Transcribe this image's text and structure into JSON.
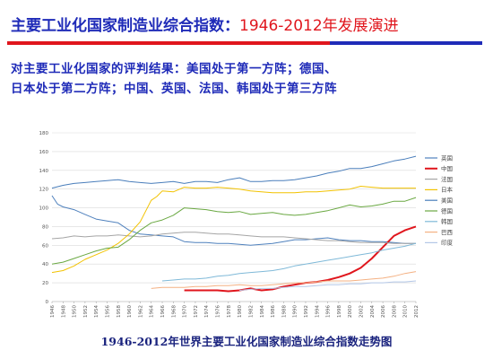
{
  "slide": {
    "title_main": "主要工业化国家制造业综合指数",
    "title_colon": "：",
    "title_years": "1946-2012年发展演进",
    "summary_line1": "对主要工业化国家的评判结果：美国处于第一方阵；德国、",
    "summary_line2": "日本处于第二方阵；中国、英国、法国、韩国处于第三方阵",
    "caption": "1946-2012年世界主要工业化国家制造业综合指数走势图"
  },
  "chart_data": {
    "type": "line",
    "title": "",
    "xlabel": "",
    "ylabel": "",
    "ylim": [
      0,
      180
    ],
    "yticks": [
      "0",
      "20",
      "40",
      "60",
      "80",
      "100",
      "120",
      "140",
      "160",
      "180"
    ],
    "xlim": [
      1946,
      2012
    ],
    "xticks": [
      "1946",
      "1948",
      "1950",
      "1952",
      "1954",
      "1956",
      "1958",
      "1960",
      "1962",
      "1964",
      "1966",
      "1968",
      "1970",
      "1972",
      "1974",
      "1976",
      "1978",
      "1980",
      "1982",
      "1984",
      "1986",
      "1988",
      "1990",
      "1992",
      "1994",
      "1996",
      "1998",
      "2000",
      "2002",
      "2004",
      "2006",
      "2008",
      "2010",
      "2012"
    ],
    "grid": "horizontal",
    "legend_position": "right",
    "series": [
      {
        "name": "英国",
        "color": "#4f81bd",
        "width": 1,
        "x": [
          1946,
          1947,
          1948,
          1950,
          1952,
          1954,
          1956,
          1958,
          1960,
          1962,
          1964,
          1966,
          1968,
          1970,
          1972,
          1974,
          1976,
          1978,
          1980,
          1982,
          1984,
          1986,
          1988,
          1990,
          1992,
          1994,
          1996,
          1998,
          2000,
          2002,
          2004,
          2006,
          2008,
          2010,
          2012
        ],
        "y": [
          113,
          104,
          101,
          98,
          93,
          88,
          86,
          84,
          76,
          72,
          71,
          70,
          69,
          64,
          63,
          63,
          62,
          62,
          61,
          60,
          61,
          62,
          64,
          66,
          66,
          67,
          68,
          66,
          65,
          65,
          64,
          64,
          63,
          62,
          62
        ]
      },
      {
        "name": "中国",
        "color": "#e0161d",
        "width": 2,
        "x": [
          1970,
          1972,
          1974,
          1976,
          1978,
          1980,
          1982,
          1984,
          1986,
          1988,
          1990,
          1992,
          1994,
          1996,
          1998,
          2000,
          2002,
          2004,
          2006,
          2008,
          2010,
          2012
        ],
        "y": [
          12,
          12,
          12,
          12,
          11,
          12,
          14,
          12,
          13,
          16,
          18,
          20,
          21,
          23,
          26,
          30,
          36,
          46,
          58,
          70,
          76,
          80
        ]
      },
      {
        "name": "法国",
        "color": "#a5a5a5",
        "width": 1,
        "x": [
          1946,
          1948,
          1950,
          1952,
          1954,
          1956,
          1958,
          1960,
          1962,
          1964,
          1966,
          1968,
          1970,
          1972,
          1974,
          1976,
          1978,
          1980,
          1982,
          1984,
          1986,
          1988,
          1990,
          1992,
          1994,
          1996,
          1998,
          2000,
          2002,
          2004,
          2006,
          2008,
          2010,
          2012
        ],
        "y": [
          67,
          68,
          70,
          69,
          70,
          70,
          71,
          70,
          69,
          70,
          72,
          73,
          74,
          74,
          73,
          72,
          72,
          71,
          70,
          69,
          69,
          69,
          68,
          67,
          66,
          65,
          65,
          64,
          63,
          63,
          63,
          62,
          62,
          62
        ]
      },
      {
        "name": "日本",
        "color": "#f2c200",
        "width": 1,
        "x": [
          1946,
          1948,
          1950,
          1952,
          1954,
          1956,
          1958,
          1960,
          1962,
          1964,
          1965,
          1966,
          1968,
          1970,
          1972,
          1974,
          1976,
          1978,
          1980,
          1982,
          1984,
          1986,
          1988,
          1990,
          1992,
          1994,
          1996,
          1998,
          2000,
          2002,
          2004,
          2006,
          2008,
          2010,
          2012
        ],
        "y": [
          31,
          33,
          38,
          45,
          50,
          55,
          62,
          72,
          85,
          108,
          112,
          118,
          117,
          122,
          121,
          121,
          122,
          121,
          120,
          118,
          117,
          116,
          116,
          116,
          117,
          117,
          118,
          119,
          120,
          123,
          122,
          121,
          121,
          121,
          121
        ]
      },
      {
        "name": "美国",
        "color": "#4a7ebb",
        "width": 1,
        "x": [
          1946,
          1948,
          1950,
          1952,
          1954,
          1956,
          1958,
          1960,
          1962,
          1964,
          1966,
          1968,
          1970,
          1972,
          1974,
          1976,
          1978,
          1980,
          1982,
          1984,
          1986,
          1988,
          1990,
          1992,
          1994,
          1996,
          1998,
          2000,
          2002,
          2004,
          2006,
          2008,
          2010,
          2012
        ],
        "y": [
          121,
          124,
          126,
          127,
          128,
          129,
          130,
          128,
          127,
          126,
          127,
          128,
          126,
          128,
          128,
          127,
          130,
          132,
          128,
          128,
          129,
          129,
          130,
          132,
          134,
          137,
          139,
          142,
          142,
          144,
          147,
          150,
          152,
          155
        ]
      },
      {
        "name": "德国",
        "color": "#6aa842",
        "width": 1,
        "x": [
          1946,
          1948,
          1950,
          1952,
          1954,
          1956,
          1958,
          1960,
          1962,
          1964,
          1966,
          1968,
          1970,
          1972,
          1974,
          1976,
          1978,
          1980,
          1982,
          1984,
          1986,
          1988,
          1990,
          1992,
          1994,
          1996,
          1998,
          2000,
          2002,
          2004,
          2006,
          2008,
          2010,
          2012
        ],
        "y": [
          40,
          42,
          46,
          50,
          54,
          57,
          58,
          66,
          76,
          84,
          87,
          92,
          100,
          99,
          98,
          96,
          95,
          96,
          93,
          94,
          95,
          93,
          92,
          93,
          95,
          97,
          100,
          103,
          101,
          102,
          104,
          107,
          107,
          111
        ]
      },
      {
        "name": "韩国",
        "color": "#7fb9d8",
        "width": 1,
        "x": [
          1966,
          1968,
          1970,
          1972,
          1974,
          1976,
          1978,
          1980,
          1982,
          1984,
          1986,
          1988,
          1990,
          1992,
          1994,
          1996,
          1998,
          2000,
          2002,
          2004,
          2006,
          2008,
          2010,
          2012
        ],
        "y": [
          22,
          23,
          24,
          24,
          25,
          27,
          28,
          30,
          31,
          32,
          33,
          35,
          38,
          40,
          42,
          44,
          46,
          48,
          50,
          52,
          55,
          57,
          59,
          62
        ]
      },
      {
        "name": "巴西",
        "color": "#f4b183",
        "width": 1,
        "x": [
          1964,
          1966,
          1968,
          1970,
          1972,
          1974,
          1976,
          1978,
          1980,
          1982,
          1984,
          1986,
          1988,
          1990,
          1992,
          1994,
          1996,
          1998,
          2000,
          2002,
          2004,
          2006,
          2008,
          2010,
          2012
        ],
        "y": [
          14,
          15,
          15,
          15,
          16,
          16,
          17,
          17,
          18,
          17,
          17,
          18,
          19,
          20,
          20,
          21,
          22,
          22,
          22,
          23,
          24,
          25,
          27,
          30,
          32
        ]
      },
      {
        "name": "印度",
        "color": "#b4c7e7",
        "width": 1,
        "x": [
          1980,
          1982,
          1984,
          1986,
          1988,
          1990,
          1992,
          1994,
          1996,
          1998,
          2000,
          2002,
          2004,
          2006,
          2008,
          2010,
          2012
        ],
        "y": [
          12,
          13,
          14,
          14,
          15,
          16,
          16,
          17,
          18,
          18,
          19,
          19,
          20,
          20,
          21,
          21,
          22
        ]
      }
    ]
  }
}
